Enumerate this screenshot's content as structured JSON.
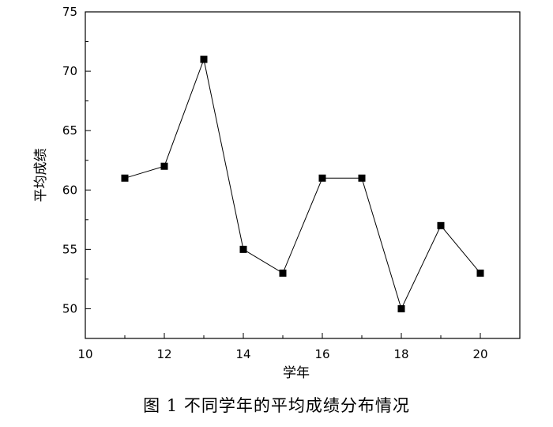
{
  "caption": "图 1 不同学年的平均成绩分布情况",
  "chart_data": {
    "type": "line",
    "title": "",
    "xlabel": "学年",
    "ylabel": "平均成绩",
    "xlim": [
      10,
      21
    ],
    "ylim": [
      47.5,
      75
    ],
    "xticks": [
      10,
      12,
      14,
      16,
      18,
      20
    ],
    "yticks": [
      50,
      55,
      60,
      65,
      70,
      75
    ],
    "grid": false,
    "marker": "square",
    "colors": {
      "line": "#000000",
      "marker": "#000000",
      "axis": "#000000"
    },
    "series": [
      {
        "x": [
          11,
          12,
          13,
          14,
          15,
          16,
          17,
          18,
          19,
          20
        ],
        "y": [
          61,
          62,
          71,
          55,
          53,
          61,
          61,
          50,
          57,
          53
        ]
      }
    ]
  }
}
